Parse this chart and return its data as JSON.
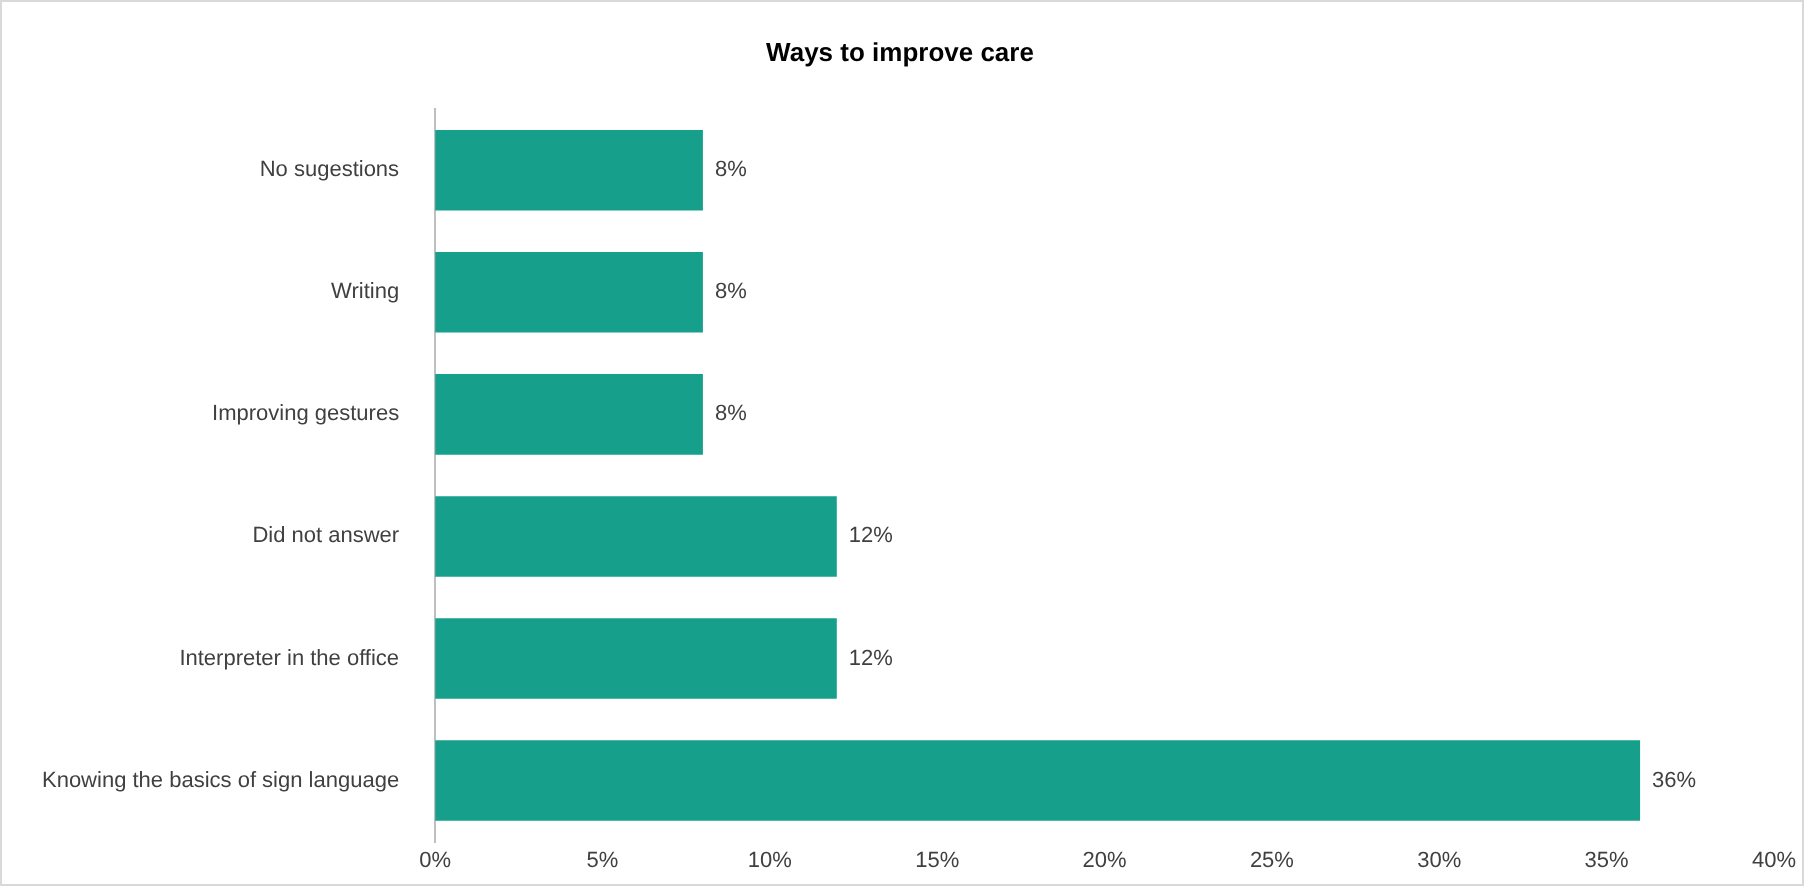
{
  "chart_data": {
    "type": "bar",
    "orientation": "horizontal",
    "title": "Ways to improve care",
    "categories": [
      "No sugestions",
      "Writing",
      "Improving gestures",
      "Did not answer",
      "Interpreter in the office",
      "Knowing the basics of sign language"
    ],
    "values": [
      8,
      8,
      8,
      12,
      12,
      36
    ],
    "value_labels": [
      "8%",
      "8%",
      "8%",
      "12%",
      "12%",
      "36%"
    ],
    "color": "#16a08b",
    "xlim": [
      0,
      40
    ],
    "xticks": [
      {
        "value": 0,
        "label": "0%"
      },
      {
        "value": 5,
        "label": "5%"
      },
      {
        "value": 10,
        "label": "10%"
      },
      {
        "value": 15,
        "label": "15%"
      },
      {
        "value": 20,
        "label": "20%"
      },
      {
        "value": 25,
        "label": "25%"
      },
      {
        "value": 30,
        "label": "30%"
      },
      {
        "value": 35,
        "label": "35%"
      },
      {
        "value": 40,
        "label": "40%"
      }
    ],
    "grid": false,
    "legend": false
  }
}
